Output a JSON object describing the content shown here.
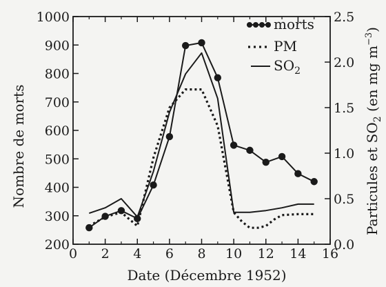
{
  "chart_data": {
    "type": "line",
    "xlabel": "Date (Décembre 1952)",
    "ylabel_left": "Nombre de morts",
    "ylabel_right": "Particules et SO",
    "ylabel_right_sub": "2",
    "ylabel_right_unit": " (en mg m",
    "ylabel_right_unit_sup": "−3",
    "ylabel_right_close": ")",
    "xlim": [
      0,
      16
    ],
    "ylim_left": [
      200,
      1000
    ],
    "ylim_right": [
      0.0,
      2.5
    ],
    "x_ticks": [
      "0",
      "2",
      "4",
      "6",
      "8",
      "10",
      "12",
      "14",
      "16"
    ],
    "y_left_ticks": [
      "200",
      "300",
      "400",
      "500",
      "600",
      "700",
      "800",
      "900",
      "1000"
    ],
    "y_right_ticks": [
      "0.0",
      "0.5",
      "1.0",
      "1.5",
      "2.0",
      "2.5"
    ],
    "grid": false,
    "legend_position": "top-right",
    "series": [
      {
        "name": "morts",
        "axis": "left",
        "style": "solid-with-markers",
        "color": "#1a1a1a",
        "x": [
          1,
          2,
          3,
          4,
          5,
          6,
          7,
          8,
          9,
          10,
          11,
          12,
          13,
          14,
          15
        ],
        "values": [
          258,
          298,
          318,
          290,
          408,
          578,
          898,
          908,
          785,
          548,
          530,
          488,
          508,
          448,
          420
        ]
      },
      {
        "name": "PM",
        "axis": "right",
        "style": "dotted",
        "color": "#1a1a1a",
        "x": [
          1,
          2,
          3,
          4,
          5,
          6,
          7,
          8,
          9,
          10,
          10.5,
          11,
          11.5,
          12,
          12.5,
          13,
          14,
          15
        ],
        "values": [
          0.2,
          0.3,
          0.35,
          0.2,
          0.95,
          1.5,
          1.7,
          1.7,
          1.3,
          0.35,
          0.25,
          0.18,
          0.18,
          0.2,
          0.27,
          0.32,
          0.33,
          0.33
        ]
      },
      {
        "name": "SO",
        "name_sub": "2",
        "axis": "right",
        "style": "solid",
        "color": "#1a1a1a",
        "x": [
          1,
          2,
          3,
          4,
          5,
          6,
          7,
          8,
          9,
          10,
          11,
          12,
          13,
          14,
          15
        ],
        "values": [
          0.34,
          0.4,
          0.5,
          0.3,
          0.8,
          1.45,
          1.87,
          2.1,
          1.6,
          0.35,
          0.35,
          0.37,
          0.4,
          0.44,
          0.44
        ]
      }
    ]
  }
}
